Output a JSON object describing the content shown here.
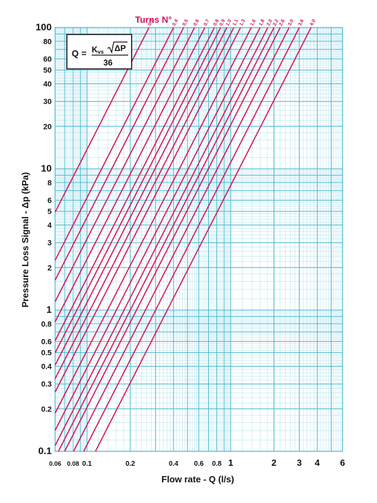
{
  "chart_data": {
    "type": "line",
    "x_scale": "log",
    "y_scale": "log",
    "xlim": [
      0.06,
      6
    ],
    "ylim": [
      0.1,
      100
    ],
    "grid": true,
    "xlabel": "Flow rate - Q (l/s)",
    "ylabel": "Pressure Loss Signal - Δp (kPa)",
    "legend_title": "Turns N°",
    "x_ticks": [
      "0.06",
      "0.08",
      "0.1",
      "0.2",
      "0.4",
      "0.6",
      "0.8",
      "1",
      "2",
      "3",
      "4",
      "6"
    ],
    "x_tick_values": [
      0.06,
      0.08,
      0.1,
      0.2,
      0.4,
      0.6,
      0.8,
      1,
      2,
      3,
      4,
      6
    ],
    "y_ticks": [
      "100",
      "80",
      "60",
      "50",
      "40",
      "30",
      "20",
      "10",
      "8",
      "6",
      "5",
      "4",
      "3",
      "2",
      "1",
      "0.8",
      "0.6",
      "0.5",
      "0.4",
      "0.3",
      "0.2",
      "0.1"
    ],
    "y_tick_values": [
      100,
      80,
      60,
      50,
      40,
      30,
      20,
      10,
      8,
      6,
      5,
      4,
      3,
      2,
      1,
      0.8,
      0.6,
      0.5,
      0.4,
      0.3,
      0.2,
      0.1
    ],
    "series": [
      {
        "name": "0.3",
        "q_at_100kPa": 0.27
      },
      {
        "name": "0.4",
        "q_at_100kPa": 0.4
      },
      {
        "name": "0.5",
        "q_at_100kPa": 0.47
      },
      {
        "name": "0.6",
        "q_at_100kPa": 0.56
      },
      {
        "name": "0.7",
        "q_at_100kPa": 0.66
      },
      {
        "name": "0.8",
        "q_at_100kPa": 0.77
      },
      {
        "name": "0.9",
        "q_at_100kPa": 0.85
      },
      {
        "name": "1.0",
        "q_at_100kPa": 0.94
      },
      {
        "name": "1.1",
        "q_at_100kPa": 1.05
      },
      {
        "name": "1.3",
        "q_at_100kPa": 1.17
      },
      {
        "name": "1.6",
        "q_at_100kPa": 1.39
      },
      {
        "name": "1.8",
        "q_at_100kPa": 1.6
      },
      {
        "name": "2.0",
        "q_at_100kPa": 1.81
      },
      {
        "name": "2.2",
        "q_at_100kPa": 2.0
      },
      {
        "name": "2.6",
        "q_at_100kPa": 2.21
      },
      {
        "name": "3.0",
        "q_at_100kPa": 2.55
      },
      {
        "name": "3.6",
        "q_at_100kPa": 3.0
      },
      {
        "name": "4.0",
        "q_at_100kPa": 3.62
      }
    ]
  },
  "formula": {
    "lhs": "Q",
    "equals": "=",
    "coefficient": "K",
    "coefficient_sub": "vs",
    "radicand": "ΔP",
    "denominator": "36"
  },
  "colors": {
    "grid": "#3fb6cf",
    "grid_minor": "#b5e4ef",
    "line": "#d4145a",
    "label": "#d4145a"
  }
}
